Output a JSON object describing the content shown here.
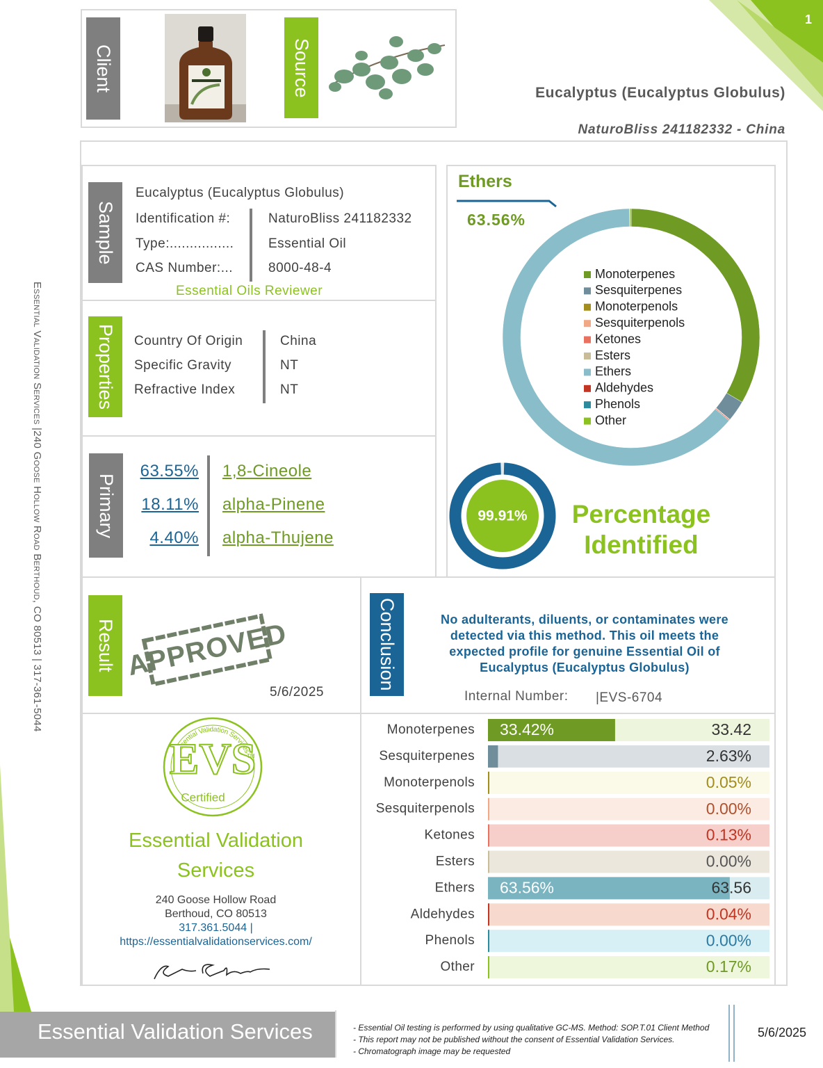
{
  "page_number": "1",
  "header": {
    "client_label": "Client",
    "source_label": "Source",
    "product": "Eucalyptus (Eucalyptus Globulus)",
    "subtitle": "NaturoBliss 241182332 - China"
  },
  "sample": {
    "label": "Sample",
    "name": "Eucalyptus (Eucalyptus Globulus)",
    "rows": [
      {
        "label": "Identification #:",
        "value": "NaturoBliss 241182332"
      },
      {
        "label": "Type:................",
        "value": "Essential Oil"
      },
      {
        "label": "CAS Number:...",
        "value": "8000-48-4"
      }
    ],
    "reviewer": "Essential Oils Reviewer"
  },
  "properties": {
    "label": "Properties",
    "rows": [
      {
        "label": "Country Of Origin",
        "value": "China"
      },
      {
        "label": "Specific Gravity",
        "value": "NT"
      },
      {
        "label": "Refractive Index",
        "value": "NT"
      }
    ]
  },
  "primary": {
    "label": "Primary",
    "rows": [
      {
        "percent": "63.55%",
        "compound": "1,8-Cineole"
      },
      {
        "percent": "18.11%",
        "compound": "alpha-Pinene"
      },
      {
        "percent": "4.40%",
        "compound": "alpha-Thujene"
      }
    ]
  },
  "chart_data": {
    "type": "donut",
    "title": "Ethers",
    "highlight": "63.56%",
    "categories": [
      "Monoterpenes",
      "Sesquiterpenes",
      "Monoterpenols",
      "Sesquiterpenols",
      "Ketones",
      "Esters",
      "Ethers",
      "Aldehydes",
      "Phenols",
      "Other"
    ],
    "values": [
      33.42,
      2.63,
      0.05,
      0.0,
      0.13,
      0.0,
      63.56,
      0.04,
      0.0,
      0.17
    ],
    "value_labels": [
      "33.42",
      "2.63%",
      "0.05%",
      "0.00%",
      "0.13%",
      "0.00%",
      "63.56",
      "0.04%",
      "0.00%",
      "0.17%"
    ],
    "inner_labels": [
      "33.42%",
      null,
      null,
      null,
      null,
      null,
      "63.56%",
      null,
      null,
      null
    ],
    "colors": [
      "#6f9a24",
      "#6f8d9b",
      "#a38d1c",
      "#f2a884",
      "#e8725f",
      "#c9bd99",
      "#89bdc9",
      "#c23522",
      "#2b8a9b",
      "#8cc21f"
    ],
    "bar_colors": [
      "#6f9a24",
      "#6f8d9b",
      "#a38d1c",
      "#f2a884",
      "#e8725f",
      "#c9bd99",
      "#7ab4c1",
      "#c23522",
      "#2b8a9b",
      "#8cc21f"
    ],
    "background_colors": [
      "#eef5dd",
      "#d9dfe3",
      "#fbf9e7",
      "#fcebe2",
      "#f6cfcb",
      "#ece7dd",
      "#d9edf1",
      "#f8d9cd",
      "#d7f0f6",
      "#eef6dc"
    ],
    "label_colors": [
      "#333333",
      "#333333",
      "#a38d1c",
      "#b0502f",
      "#c23522",
      "#555555",
      "#333333",
      "#c23522",
      "#2a7aa3",
      "#6f9a24"
    ],
    "xlim": [
      0,
      74
    ]
  },
  "identified": {
    "value": 99.91,
    "label": "99.91%",
    "caption": [
      "Percentage",
      "Identified"
    ]
  },
  "result": {
    "label": "Result",
    "stamp": "APPROVED",
    "date": "5/6/2025"
  },
  "conclusion": {
    "label": "Conclusion",
    "text": "No adulterants, diluents, or contaminates were detected via this method. This oil meets the expected profile for genuine Essential Oil of Eucalyptus (Eucalyptus Globulus)",
    "internal_label": "Internal Number:",
    "internal_number": "|EVS-6704"
  },
  "logo": {
    "ring_text": "Essential Validation Services",
    "mark": "EVS",
    "tm": "TM",
    "certified": "Certified",
    "company": [
      "Essential Validation",
      "Services"
    ],
    "address": [
      "240 Goose Hollow Road",
      "Berthoud, CO 80513"
    ],
    "phone": "317.361.5044 |",
    "url": "https://essentialvalidationservices.com/"
  },
  "side_text": "Essential Validation Services |240 Goose Hollow Road Berthoud, CO 80513 | 317-361-5044",
  "footer": {
    "brand": "Essential Validation Services",
    "notes": [
      "- Essential Oil testing is performed by using qualitative GC-MS. Method: SOP.T.01 Client Method",
      "- This report may not be published without the consent of Essential Validation Services.",
      "- Chromatograph image may be requested"
    ],
    "date": "5/6/2025"
  }
}
